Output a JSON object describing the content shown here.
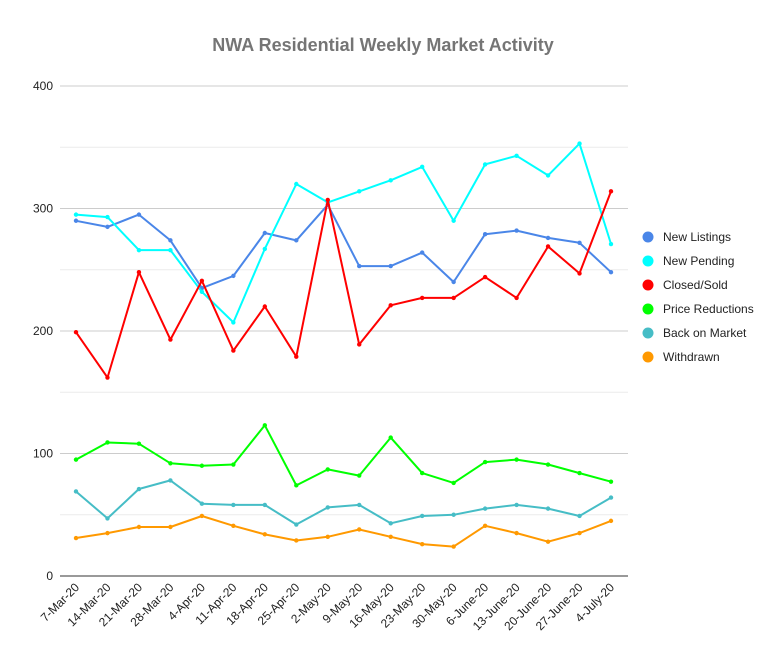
{
  "chart_data": {
    "type": "line",
    "title": "NWA Residential Weekly Market Activity",
    "xlabel": "",
    "ylabel": "",
    "ylim": [
      0,
      400
    ],
    "yticks": [
      0,
      100,
      200,
      300,
      400
    ],
    "grid": true,
    "legend_position": "right",
    "categories": [
      "7-Mar-20",
      "14-Mar-20",
      "21-Mar-20",
      "28-Mar-20",
      "4-Apr-20",
      "11-Apr-20",
      "18-Apr-20",
      "25-Apr-20",
      "2-May-20",
      "9-May-20",
      "16-May-20",
      "23-May-20",
      "30-May-20",
      "6-June-20",
      "13-June-20",
      "20-June-20",
      "27-June-20",
      "4-July-20"
    ],
    "series": [
      {
        "name": "New Listings",
        "color": "#4a86e8",
        "values": [
          290,
          285,
          295,
          274,
          235,
          245,
          280,
          274,
          303,
          253,
          253,
          264,
          240,
          279,
          282,
          276,
          272,
          248
        ]
      },
      {
        "name": "New Pending",
        "color": "#00ffff",
        "values": [
          295,
          293,
          266,
          266,
          232,
          207,
          267,
          320,
          305,
          314,
          323,
          334,
          290,
          336,
          343,
          327,
          353,
          271
        ]
      },
      {
        "name": "Closed/Sold",
        "color": "#ff0000",
        "values": [
          199,
          162,
          248,
          193,
          241,
          184,
          220,
          179,
          307,
          189,
          221,
          227,
          227,
          244,
          227,
          269,
          247,
          314
        ]
      },
      {
        "name": "Price Reductions",
        "color": "#00ff00",
        "values": [
          95,
          109,
          108,
          92,
          90,
          91,
          123,
          74,
          87,
          82,
          113,
          84,
          76,
          93,
          95,
          91,
          84,
          77
        ]
      },
      {
        "name": "Back on Market",
        "color": "#46bdc6",
        "values": [
          69,
          47,
          71,
          78,
          59,
          58,
          58,
          42,
          56,
          58,
          43,
          49,
          50,
          55,
          58,
          55,
          49,
          64
        ]
      },
      {
        "name": "Withdrawn",
        "color": "#ff9900",
        "values": [
          31,
          35,
          40,
          40,
          49,
          41,
          34,
          29,
          32,
          38,
          32,
          26,
          24,
          41,
          35,
          28,
          35,
          45
        ]
      }
    ]
  }
}
